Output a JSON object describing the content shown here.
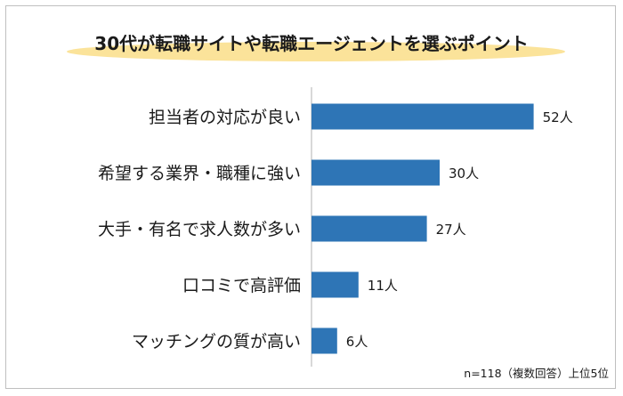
{
  "chart_data": {
    "type": "bar",
    "orientation": "horizontal",
    "title": "30代が転職サイトや転職エージェントを選ぶポイント",
    "categories": [
      "担当者の対応が良い",
      "希望する業界・職種に強い",
      "大手・有名で求人数が多い",
      "口コミで高評価",
      "マッチングの質が高い"
    ],
    "values": [
      52,
      30,
      27,
      11,
      6
    ],
    "value_labels": [
      "52人",
      "30人",
      "27人",
      "11人",
      "6人"
    ],
    "unit": "人",
    "note": "n=118（複数回答）上位5位",
    "bar_color": "#2e75b6",
    "title_highlight_color": "#fbe39a",
    "axis_color": "#bfbfbf",
    "xlim": [
      0,
      60
    ],
    "grid": false,
    "legend": "none"
  }
}
